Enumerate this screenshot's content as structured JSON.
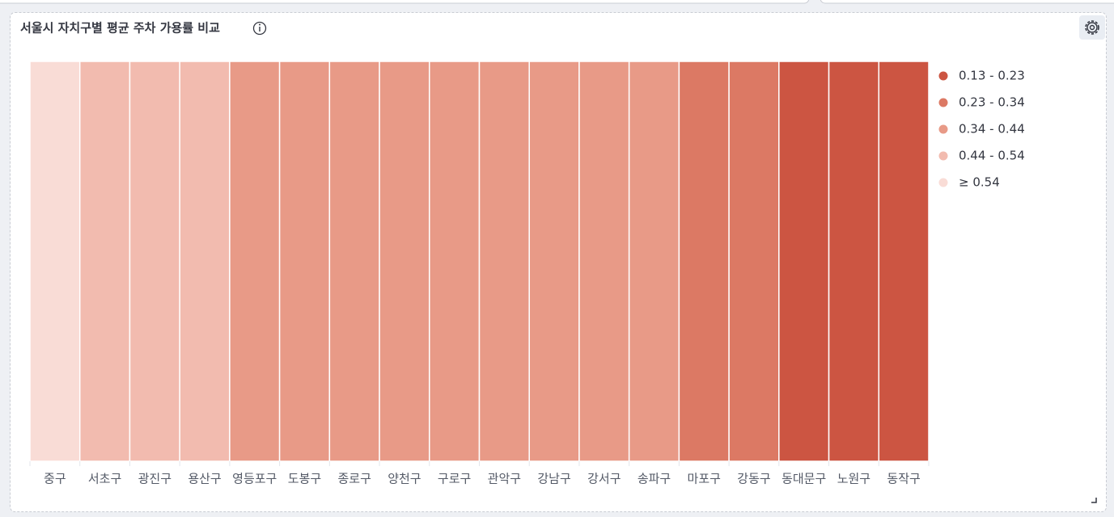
{
  "chart_data": {
    "type": "heatmap",
    "title": "서울시 자치구별 평균 주차 가용률 비교",
    "categories": [
      "중구",
      "서초구",
      "광진구",
      "용산구",
      "영등포구",
      "도봉구",
      "종로구",
      "양천구",
      "구로구",
      "관악구",
      "강남구",
      "강서구",
      "송파구",
      "마포구",
      "강동구",
      "동대문구",
      "노원구",
      "동작구"
    ],
    "values": [
      0.6,
      0.49,
      0.49,
      0.49,
      0.39,
      0.39,
      0.39,
      0.39,
      0.39,
      0.39,
      0.39,
      0.39,
      0.39,
      0.28,
      0.28,
      0.18,
      0.18,
      0.18
    ],
    "legend": {
      "position": "right",
      "items": [
        {
          "label": "0.13 - 0.23",
          "min": 0.13,
          "max": 0.23,
          "color": "#cc5542"
        },
        {
          "label": "0.23 - 0.34",
          "min": 0.23,
          "max": 0.34,
          "color": "#dc7964"
        },
        {
          "label": "0.34 - 0.44",
          "min": 0.34,
          "max": 0.44,
          "color": "#e89a87"
        },
        {
          "label": "0.44 - 0.54",
          "min": 0.44,
          "max": 0.54,
          "color": "#f2bbaf"
        },
        {
          "label": "≥ 0.54",
          "min": 0.54,
          "max": null,
          "color": "#f9dcd6"
        }
      ]
    }
  }
}
